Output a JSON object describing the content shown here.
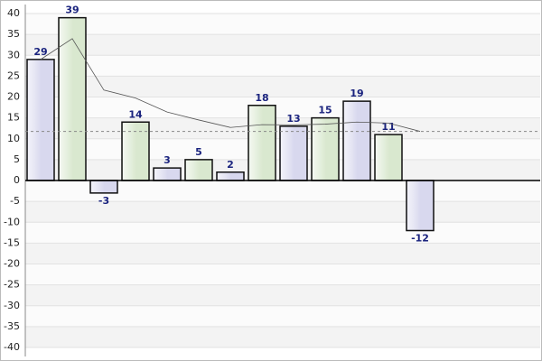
{
  "chart_data": {
    "type": "bar",
    "values": [
      29,
      39,
      -3,
      14,
      3,
      5,
      2,
      18,
      13,
      15,
      19,
      11,
      -12
    ],
    "colors": [
      "#d8d8ee",
      "#d9e8cf"
    ],
    "trend": [
      29,
      34,
      21.67,
      19.75,
      16.4,
      14.5,
      12.71,
      13.38,
      13.33,
      13.5,
      14,
      13.75,
      11.77
    ],
    "average": 11.77,
    "ylim": [
      -40,
      40
    ],
    "yticks": [
      -40,
      -35,
      -30,
      -25,
      -20,
      -15,
      -10,
      -5,
      0,
      5,
      10,
      15,
      20,
      25,
      30,
      35,
      40
    ],
    "grid": true
  }
}
